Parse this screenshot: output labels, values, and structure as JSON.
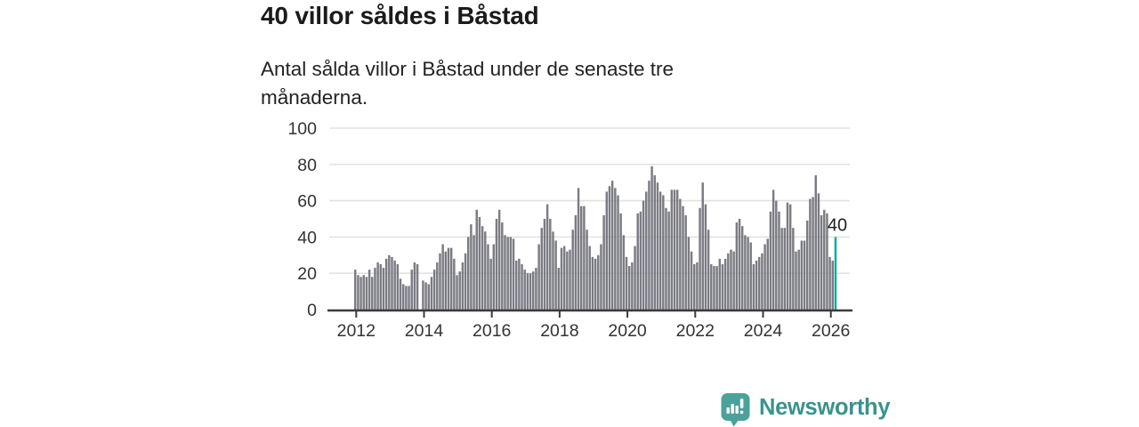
{
  "header": {
    "title": "40 villor såldes i Båstad",
    "subtitle": "Antal sålda villor i Båstad under de senaste tre månaderna."
  },
  "chart_data": {
    "type": "bar",
    "title": "40 villor såldes i Båstad",
    "subtitle": "Antal sålda villor i Båstad under de senaste tre månaderna.",
    "x_start": "2012-01",
    "x_end": "2026-03",
    "frequency": "monthly",
    "values": [
      22,
      19,
      18,
      19,
      18,
      22,
      18,
      23,
      26,
      25,
      23,
      28,
      30,
      29,
      27,
      25,
      17,
      14,
      13,
      13,
      22,
      26,
      25,
      0,
      16,
      15,
      14,
      18,
      22,
      26,
      31,
      36,
      32,
      34,
      34,
      28,
      19,
      21,
      26,
      31,
      40,
      47,
      41,
      55,
      51,
      46,
      43,
      36,
      28,
      36,
      50,
      55,
      48,
      41,
      40,
      40,
      39,
      27,
      28,
      25,
      22,
      20,
      20,
      21,
      23,
      36,
      45,
      50,
      58,
      50,
      43,
      38,
      23,
      34,
      35,
      32,
      33,
      44,
      52,
      67,
      57,
      57,
      44,
      35,
      29,
      28,
      30,
      36,
      52,
      65,
      68,
      71,
      67,
      63,
      53,
      41,
      29,
      24,
      26,
      35,
      53,
      54,
      60,
      65,
      71,
      79,
      74,
      70,
      65,
      63,
      56,
      54,
      66,
      66,
      66,
      61,
      57,
      52,
      40,
      32,
      25,
      26,
      56,
      70,
      58,
      44,
      25,
      24,
      24,
      28,
      25,
      28,
      31,
      33,
      32,
      48,
      50,
      46,
      41,
      40,
      37,
      25,
      27,
      29,
      31,
      36,
      39,
      54,
      66,
      60,
      54,
      45,
      45,
      59,
      58,
      45,
      32,
      33,
      38,
      38,
      49,
      61,
      62,
      74,
      64,
      52,
      55,
      53,
      29,
      27,
      40
    ],
    "highlight": {
      "index": 170,
      "value": 40,
      "label": "40"
    },
    "ylim": [
      0,
      100
    ],
    "yticks": [
      0,
      20,
      40,
      60,
      80,
      100
    ],
    "xticks": [
      2012,
      2014,
      2016,
      2018,
      2020,
      2022,
      2024,
      2026
    ],
    "grid": true,
    "legend_position": "none",
    "xlabel": "",
    "ylabel": ""
  },
  "colors": {
    "bar": "#7b7b83",
    "highlight": "#00a9a0",
    "grid": "#e2e2e2",
    "axis": "#3b3b3b",
    "tick_label": "#333333",
    "annotation": "#1e1e1e"
  },
  "branding": {
    "logo_text": "Newsworthy",
    "logo_text_color": "#39938d",
    "icon_color": "#4aa29b",
    "icon_name": "newsworthy-chart-bubble-icon"
  }
}
